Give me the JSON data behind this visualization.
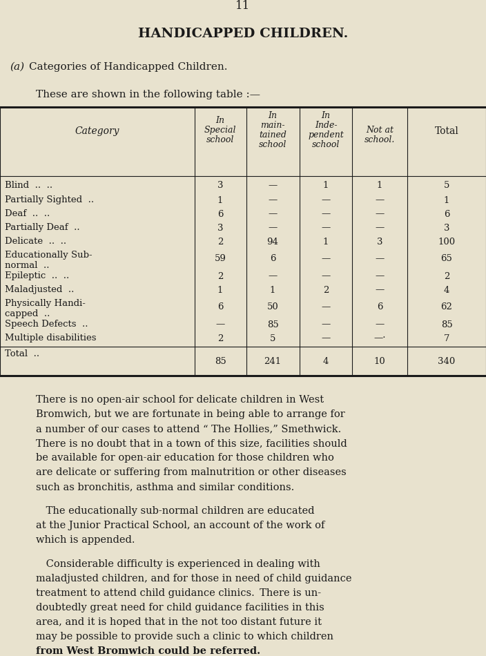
{
  "page_number": "11",
  "title": "HANDICAPPED CHILDREN.",
  "subtitle_a": "(a) Categories of Handicapped Children.",
  "intro_text": "These are shown in the following table :—",
  "bg_color": "#e8e2ce",
  "text_color": "#1a1a1a",
  "col_headers_line1": [
    "",
    "",
    "In",
    "In",
    "",
    ""
  ],
  "col_headers_line2": [
    "Category",
    "In",
    "main-",
    "Inde-",
    "Not at",
    "Total"
  ],
  "col_headers_line3": [
    "",
    "Special",
    "tained",
    "pendent",
    "school.",
    ""
  ],
  "col_headers_line4": [
    "",
    "school",
    "school",
    "school",
    "",
    ""
  ],
  "table_rows": [
    [
      "Blind  ..  ..",
      "3",
      "—",
      "1",
      "1",
      "5"
    ],
    [
      "Partially Sighted  ..",
      "1",
      "—",
      "—",
      "—",
      "1"
    ],
    [
      "Deaf  ..  ..",
      "6",
      "—",
      "—",
      "—",
      "6"
    ],
    [
      "Partially Deaf  ..",
      "3",
      "—",
      "—",
      "—",
      "3"
    ],
    [
      "Delicate  ..  ..",
      "2",
      "94",
      "1",
      "3",
      "100"
    ],
    [
      "Educationally Sub-\nnormal  ..",
      "59",
      "6",
      "—",
      "—",
      "65"
    ],
    [
      "Epileptic  ..  ..",
      "2",
      "—",
      "—",
      "—",
      "2"
    ],
    [
      "Maladjusted  ..",
      "1",
      "1",
      "2",
      "—",
      "4"
    ],
    [
      "Physically Handi-\ncapped  ..",
      "6",
      "50",
      "—",
      "6",
      "62"
    ],
    [
      "Speech Defects  ..",
      "—",
      "85",
      "—",
      "—",
      "85"
    ],
    [
      "Multiple disabilities",
      "2",
      "5",
      "—",
      "—·",
      "7"
    ]
  ],
  "total_row": [
    "Total  ..",
    "85",
    "241",
    "4",
    "10",
    "340"
  ],
  "paragraph1": "There is no open-air school for delicate children in West Bromwich, but we are fortunate in being able to arrange for a number of our cases to attend “ The Hollies,” Smethwick. There is no doubt that in a town of this size, facilities should be available for open-air education for those children who are delicate or suffering from malnutrition or other diseases such as bronchitis, asthma and similar conditions.",
  "paragraph2": "The educationally sub-normal children are educated at the Junior Practical School, an account of the work of which is appended.",
  "paragraph3_normal": "Considerable difficulty is experienced in dealing with maladjusted children, and for those in need of child guidance treatment to attend child guidance clinics. There is undoubtedly great need for child guidance facilities in this area, and it is hoped that in the not too distant future it may be possible to provide such a clinic to which children ",
  "paragraph3_bold": "from West Bromwich could be referred."
}
